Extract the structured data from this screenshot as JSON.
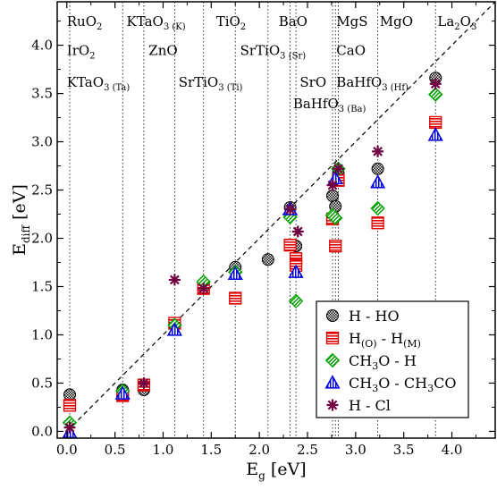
{
  "chart_data": {
    "type": "scatter",
    "xlabel": {
      "main": "E",
      "sub": "g",
      "unit": " [eV]"
    },
    "ylabel": {
      "main": "E",
      "sub": "diff",
      "unit": " [eV]"
    },
    "xlim": [
      -0.1,
      4.45
    ],
    "ylim": [
      -0.07,
      4.45
    ],
    "x_ticks": [
      "0.0",
      "0.5",
      "1.0",
      "1.5",
      "2.0",
      "2.5",
      "3.0",
      "3.5",
      "4.0"
    ],
    "y_ticks": [
      "0.0",
      "0.5",
      "1.0",
      "1.5",
      "2.0",
      "2.5",
      "3.0",
      "3.5",
      "4.0"
    ],
    "x_tick_values": [
      0,
      0.5,
      1,
      1.5,
      2,
      2.5,
      3,
      3.5,
      4
    ],
    "y_tick_values": [
      0,
      0.5,
      1,
      1.5,
      2,
      2.5,
      3,
      3.5,
      4
    ],
    "diagonal": {
      "style": "dashed",
      "from": [
        0,
        0
      ],
      "to": [
        4.45,
        4.45
      ]
    },
    "material_lines": [
      0.03,
      0.58,
      0.8,
      1.12,
      1.42,
      1.75,
      2.09,
      2.32,
      2.38,
      2.76,
      2.79,
      2.82,
      3.23,
      3.83
    ],
    "material_labels": [
      {
        "main": "RuO",
        "sub": "2",
        "x": 0.0,
        "y": 4.2
      },
      {
        "main": "IrO",
        "sub": "2",
        "x": 0.0,
        "y": 3.9
      },
      {
        "main": "KTaO",
        "sub": "3",
        "sub2": "(Ta)",
        "x": 0.0,
        "y": 3.57
      },
      {
        "main": "KTaO",
        "sub": "3",
        "sub2": "(K)",
        "x": 0.62,
        "y": 4.2
      },
      {
        "main": "ZnO",
        "sub": "",
        "x": 0.85,
        "y": 3.9
      },
      {
        "main": "TiO",
        "sub": "2",
        "x": 1.55,
        "y": 4.2
      },
      {
        "main": "SrTiO",
        "sub": "3",
        "sub2": "(Ti)",
        "x": 1.16,
        "y": 3.57
      },
      {
        "main": "BaO",
        "sub": "",
        "x": 2.2,
        "y": 4.2
      },
      {
        "main": "SrTiO",
        "sub": "3",
        "sub2": "(Sr)",
        "x": 1.8,
        "y": 3.9
      },
      {
        "main": "SrO",
        "sub": "",
        "x": 2.42,
        "y": 3.57
      },
      {
        "main": "BaHfO",
        "sub": "3",
        "sub2": "(Ba)",
        "x": 2.35,
        "y": 3.35
      },
      {
        "main": "MgS",
        "sub": "",
        "x": 2.8,
        "y": 4.2
      },
      {
        "main": "CaO",
        "sub": "",
        "x": 2.8,
        "y": 3.9
      },
      {
        "main": "BaHfO",
        "sub": "3",
        "sub2": "(Hf)",
        "x": 2.8,
        "y": 3.57
      },
      {
        "main": "MgO",
        "sub": "",
        "x": 3.25,
        "y": 4.2
      },
      {
        "main": "La",
        "sub": "2",
        "post": "O",
        "sub3": "3",
        "x": 3.85,
        "y": 4.2
      }
    ],
    "series": [
      {
        "name": "H - HO",
        "label": {
          "a": "H - HO"
        },
        "marker": "circle",
        "color": "#000000",
        "points": [
          [
            0.03,
            0.38
          ],
          [
            0.58,
            0.43
          ],
          [
            0.8,
            0.43
          ],
          [
            1.12,
            1.1
          ],
          [
            1.42,
            1.48
          ],
          [
            1.75,
            1.7
          ],
          [
            2.09,
            1.78
          ],
          [
            2.32,
            2.32
          ],
          [
            2.38,
            1.92
          ],
          [
            2.76,
            2.44
          ],
          [
            2.79,
            2.33
          ],
          [
            2.82,
            2.67
          ],
          [
            3.23,
            2.72
          ],
          [
            3.83,
            3.66
          ]
        ]
      },
      {
        "name": "H(O) - H(M)",
        "label": {
          "a": "H",
          "a_sub": "(O)",
          "b": " - H",
          "b_sub": "(M)"
        },
        "marker": "square",
        "color": "#e00000",
        "points": [
          [
            0.03,
            0.27
          ],
          [
            0.58,
            0.37
          ],
          [
            0.8,
            0.48
          ],
          [
            1.12,
            1.12
          ],
          [
            1.42,
            1.48
          ],
          [
            1.75,
            1.38
          ],
          [
            2.32,
            1.93
          ],
          [
            2.38,
            1.79
          ],
          [
            2.38,
            1.72
          ],
          [
            2.76,
            2.2
          ],
          [
            2.79,
            1.92
          ],
          [
            2.82,
            2.6
          ],
          [
            3.23,
            2.16
          ],
          [
            3.83,
            3.2
          ]
        ]
      },
      {
        "name": "CH3O - H",
        "label": {
          "a": "CH",
          "a_sub": "3",
          "b": "O - H"
        },
        "marker": "diamond",
        "color": "#00a000",
        "points": [
          [
            0.03,
            0.09
          ],
          [
            0.58,
            0.42
          ],
          [
            1.12,
            1.1
          ],
          [
            1.42,
            1.55
          ],
          [
            1.75,
            1.65
          ],
          [
            2.32,
            2.22
          ],
          [
            2.38,
            1.35
          ],
          [
            2.76,
            2.24
          ],
          [
            2.79,
            2.21
          ],
          [
            2.82,
            2.72
          ],
          [
            3.23,
            2.31
          ],
          [
            3.83,
            3.49
          ]
        ]
      },
      {
        "name": "CH3O - CH3CO",
        "label": {
          "a": "CH",
          "a_sub": "3",
          "b": "O - CH",
          "b_sub": "3",
          "c": "CO"
        },
        "marker": "triangle",
        "color": "#0000e0",
        "points": [
          [
            0.03,
            -0.01
          ],
          [
            0.58,
            0.39
          ],
          [
            1.12,
            1.05
          ],
          [
            1.75,
            1.63
          ],
          [
            2.32,
            2.3
          ],
          [
            2.38,
            1.65
          ],
          [
            2.79,
            2.62
          ],
          [
            3.23,
            2.58
          ],
          [
            3.83,
            3.07
          ]
        ]
      },
      {
        "name": "H - Cl",
        "label": {
          "a": "H - Cl"
        },
        "marker": "star",
        "color": "#700040",
        "points": [
          [
            0.03,
            0.04
          ],
          [
            0.8,
            0.5
          ],
          [
            1.12,
            1.57
          ],
          [
            1.42,
            1.48
          ],
          [
            2.32,
            2.3
          ],
          [
            2.4,
            2.07
          ],
          [
            2.76,
            2.55
          ],
          [
            2.82,
            2.72
          ],
          [
            3.23,
            2.9
          ],
          [
            3.83,
            3.6
          ]
        ]
      }
    ]
  }
}
